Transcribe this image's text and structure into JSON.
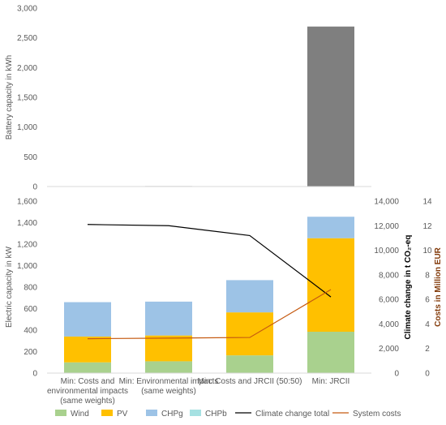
{
  "chart_data": [
    {
      "type": "bar",
      "categories": [
        "Min: Costs and environmental impacts (same weights)",
        "Min: Environmental impacts (same weights)",
        "Min: Costs and JRCII (50:50)",
        "Min: JRCII"
      ],
      "category_lines": [
        [
          "Min: Costs and",
          "environmental impacts",
          "(same weights)"
        ],
        [
          "Min: Environmental impacts",
          "(same weights)"
        ],
        [
          "Min: Costs and JRCII (50:50)"
        ],
        [
          "Min: JRCII"
        ]
      ],
      "series": [
        {
          "values": [
            0,
            8,
            5,
            2690
          ]
        }
      ],
      "ylabel": "Battery capacity in kWh",
      "ylim": [
        0,
        3000
      ],
      "yticks": [
        "0",
        "500",
        "1,000",
        "1,500",
        "2,000",
        "2,500",
        "3,000"
      ],
      "grid": false,
      "color": "#7f7f7f"
    },
    {
      "type": "bar",
      "stacked": true,
      "categories": [
        "Min: Costs and environmental impacts (same weights)",
        "Min: Environmental impacts (same weights)",
        "Min: Costs and JRCII (50:50)",
        "Min: JRCII"
      ],
      "series": [
        {
          "name": "Wind",
          "values": [
            100,
            110,
            165,
            385
          ],
          "color": "#a9d18e"
        },
        {
          "name": "PV",
          "values": [
            240,
            240,
            400,
            870
          ],
          "color": "#ffc000"
        },
        {
          "name": "CHPg",
          "values": [
            0,
            0,
            0,
            0
          ],
          "color": "#9dc3e6"
        },
        {
          "name": "CHPb",
          "values": [
            320,
            315,
            300,
            200
          ],
          "color": "#9dc3e6"
        }
      ],
      "lines": [
        {
          "name": "Climate change total",
          "axis": "y2",
          "values": [
            12100,
            12000,
            11200,
            6200
          ],
          "color": "#000000"
        },
        {
          "name": "System costs",
          "axis": "y3",
          "values": [
            2.8,
            2.85,
            2.9,
            6.8
          ],
          "color": "#c55a11"
        }
      ],
      "ylabel": "Electric capacity in kW",
      "ylim": [
        0,
        1600
      ],
      "yticks": [
        "0",
        "200",
        "400",
        "600",
        "800",
        "1,000",
        "1,200",
        "1,400",
        "1,600"
      ],
      "y2label": "Climate change in t CO₂-eq",
      "y2lim": [
        0,
        14000
      ],
      "y2ticks": [
        "0",
        "2,000",
        "4,000",
        "6,000",
        "8,000",
        "10,000",
        "12,000",
        "14,000"
      ],
      "y3label": "Costs in Million EUR",
      "y3lim": [
        0,
        14
      ],
      "y3ticks": [
        "0",
        "2",
        "4",
        "6",
        "8",
        "10",
        "12",
        "14"
      ],
      "grid": false,
      "legend_position": "bottom"
    }
  ]
}
